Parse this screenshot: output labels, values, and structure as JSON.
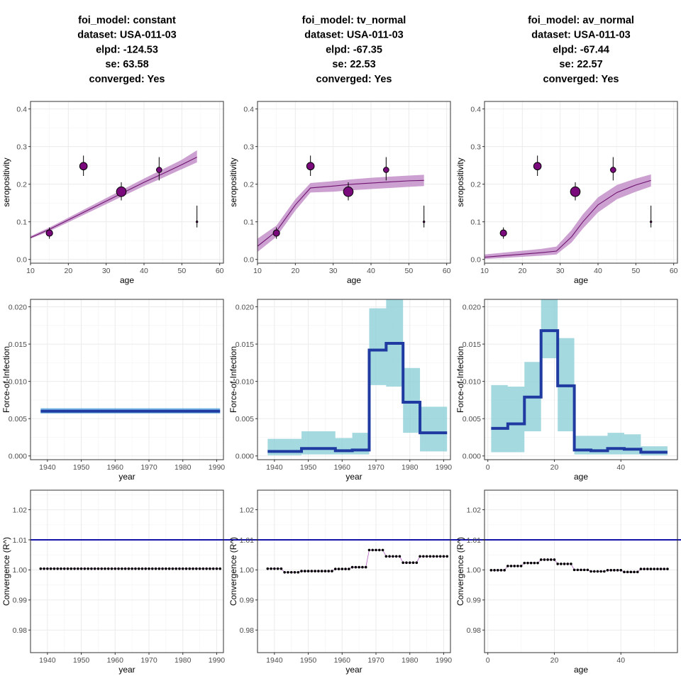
{
  "chart_data": [
    {
      "type": "scatter",
      "panel": "seroprevalence",
      "title_lines": [
        "foi_model: constant",
        "dataset: USA-011-03",
        "elpd: -124.53",
        "se: 63.58",
        "converged: Yes"
      ],
      "xlabel": "age",
      "ylabel": "seropositivity",
      "xlim": [
        10,
        61
      ],
      "ylim": [
        -0.01,
        0.42
      ],
      "xticks": [
        10,
        20,
        30,
        40,
        50,
        60
      ],
      "yticks": [
        0.0,
        0.1,
        0.2,
        0.3,
        0.4
      ],
      "fit_x": [
        10,
        15,
        20,
        25,
        30,
        35,
        40,
        45,
        50,
        54
      ],
      "fit_mid": [
        0.058,
        0.08,
        0.105,
        0.13,
        0.155,
        0.18,
        0.205,
        0.228,
        0.252,
        0.272
      ],
      "fit_lo": [
        0.055,
        0.075,
        0.099,
        0.123,
        0.147,
        0.171,
        0.195,
        0.217,
        0.24,
        0.258
      ],
      "fit_hi": [
        0.062,
        0.085,
        0.111,
        0.137,
        0.163,
        0.189,
        0.215,
        0.24,
        0.265,
        0.29
      ],
      "observed": [
        {
          "age": 15,
          "prev": 0.07,
          "lo": 0.055,
          "hi": 0.085,
          "size": 0.45
        },
        {
          "age": 24,
          "prev": 0.248,
          "lo": 0.222,
          "hi": 0.276,
          "size": 0.55
        },
        {
          "age": 34,
          "prev": 0.18,
          "lo": 0.157,
          "hi": 0.205,
          "size": 0.75
        },
        {
          "age": 44,
          "prev": 0.238,
          "lo": 0.21,
          "hi": 0.272,
          "size": 0.35
        },
        {
          "age": 54,
          "prev": 0.1,
          "lo": 0.085,
          "hi": 0.143,
          "size": 0.0
        }
      ]
    },
    {
      "type": "scatter",
      "panel": "seroprevalence",
      "title_lines": [
        "foi_model: tv_normal",
        "dataset: USA-011-03",
        "elpd: -67.35",
        "se: 22.53",
        "converged: Yes"
      ],
      "xlabel": "age",
      "ylabel": "seropositivity",
      "xlim": [
        10,
        61
      ],
      "ylim": [
        -0.01,
        0.42
      ],
      "xticks": [
        10,
        20,
        30,
        40,
        50,
        60
      ],
      "yticks": [
        0.0,
        0.1,
        0.2,
        0.3,
        0.4
      ],
      "fit_x": [
        10,
        15,
        20,
        24,
        30,
        35,
        40,
        45,
        50,
        54
      ],
      "fit_mid": [
        0.035,
        0.075,
        0.145,
        0.19,
        0.195,
        0.2,
        0.203,
        0.206,
        0.209,
        0.21
      ],
      "fit_lo": [
        0.02,
        0.06,
        0.13,
        0.178,
        0.18,
        0.184,
        0.187,
        0.19,
        0.193,
        0.195
      ],
      "fit_hi": [
        0.055,
        0.09,
        0.16,
        0.203,
        0.208,
        0.213,
        0.217,
        0.22,
        0.223,
        0.225
      ],
      "observed": [
        {
          "age": 15,
          "prev": 0.07,
          "lo": 0.055,
          "hi": 0.085,
          "size": 0.45
        },
        {
          "age": 24,
          "prev": 0.248,
          "lo": 0.222,
          "hi": 0.276,
          "size": 0.55
        },
        {
          "age": 34,
          "prev": 0.18,
          "lo": 0.157,
          "hi": 0.205,
          "size": 0.75
        },
        {
          "age": 44,
          "prev": 0.238,
          "lo": 0.21,
          "hi": 0.272,
          "size": 0.35
        },
        {
          "age": 54,
          "prev": 0.1,
          "lo": 0.085,
          "hi": 0.143,
          "size": 0.0
        }
      ]
    },
    {
      "type": "scatter",
      "panel": "seroprevalence",
      "title_lines": [
        "foi_model: av_normal",
        "dataset: USA-011-03",
        "elpd: -67.44",
        "se: 22.57",
        "converged: Yes"
      ],
      "xlabel": "age",
      "ylabel": "seropositivity",
      "xlim": [
        10,
        61
      ],
      "ylim": [
        -0.01,
        0.42
      ],
      "xticks": [
        10,
        20,
        30,
        40,
        50,
        60
      ],
      "yticks": [
        0.0,
        0.1,
        0.2,
        0.3,
        0.4
      ],
      "fit_x": [
        10,
        15,
        20,
        25,
        29,
        33,
        36,
        40,
        45,
        50,
        54
      ],
      "fit_mid": [
        0.006,
        0.01,
        0.014,
        0.018,
        0.022,
        0.06,
        0.1,
        0.145,
        0.178,
        0.198,
        0.21
      ],
      "fit_lo": [
        0.001,
        0.004,
        0.007,
        0.01,
        0.013,
        0.045,
        0.082,
        0.125,
        0.16,
        0.18,
        0.194
      ],
      "fit_hi": [
        0.013,
        0.018,
        0.023,
        0.028,
        0.034,
        0.078,
        0.12,
        0.165,
        0.198,
        0.215,
        0.226
      ],
      "observed": [
        {
          "age": 15,
          "prev": 0.07,
          "lo": 0.055,
          "hi": 0.085,
          "size": 0.45
        },
        {
          "age": 24,
          "prev": 0.248,
          "lo": 0.222,
          "hi": 0.276,
          "size": 0.55
        },
        {
          "age": 34,
          "prev": 0.18,
          "lo": 0.157,
          "hi": 0.205,
          "size": 0.75
        },
        {
          "age": 44,
          "prev": 0.238,
          "lo": 0.21,
          "hi": 0.272,
          "size": 0.35
        },
        {
          "age": 54,
          "prev": 0.1,
          "lo": 0.085,
          "hi": 0.143,
          "size": 0.0
        }
      ]
    },
    {
      "type": "line",
      "panel": "foi",
      "xlabel": "year",
      "ylabel": "Force-of-Infection",
      "xlim": [
        1935,
        1992
      ],
      "ylim": [
        -0.0005,
        0.021
      ],
      "xticks": [
        1940,
        1950,
        1960,
        1970,
        1980,
        1990
      ],
      "yticks": [
        0.0,
        0.005,
        0.01,
        0.015,
        0.02
      ],
      "ytick_labels": [
        "0.000",
        "0.005",
        "0.010",
        "0.015",
        "0.020"
      ],
      "x": [
        1938,
        1991
      ],
      "mid": [
        0.006,
        0.006
      ],
      "lo": [
        0.0057,
        0.0057
      ],
      "hi": [
        0.0064,
        0.0064
      ]
    },
    {
      "type": "line",
      "panel": "foi",
      "xlabel": "year",
      "ylabel": "Force-of-Infection",
      "xlim": [
        1935,
        1992
      ],
      "ylim": [
        -0.0005,
        0.021
      ],
      "xticks": [
        1940,
        1950,
        1960,
        1970,
        1980,
        1990
      ],
      "yticks": [
        0.0,
        0.005,
        0.01,
        0.015,
        0.02
      ],
      "ytick_labels": [
        "0.000",
        "0.005",
        "0.010",
        "0.015",
        "0.020"
      ],
      "x": [
        1938,
        1943,
        1948,
        1953,
        1958,
        1963,
        1968,
        1973,
        1978,
        1983,
        1988,
        1991
      ],
      "mid": [
        0.0006,
        0.0006,
        0.001,
        0.001,
        0.0007,
        0.0008,
        0.0142,
        0.0151,
        0.0072,
        0.0031,
        0.0031,
        0.0031
      ],
      "lo": [
        0.0001,
        0.0001,
        0.0002,
        0.0002,
        0.0002,
        0.0002,
        0.0095,
        0.0093,
        0.0031,
        0.0006,
        0.0006,
        0.0006
      ],
      "hi": [
        0.0023,
        0.0023,
        0.0033,
        0.0033,
        0.0024,
        0.0031,
        0.0198,
        0.0225,
        0.0118,
        0.0066,
        0.0066,
        0.0066
      ]
    },
    {
      "type": "line",
      "panel": "foi",
      "xlabel": "age",
      "ylabel": "Force-of-Infection",
      "xlim": [
        -1,
        57
      ],
      "ylim": [
        -0.0005,
        0.021
      ],
      "xticks": [
        0,
        20,
        40
      ],
      "yticks": [
        0.0,
        0.005,
        0.01,
        0.015,
        0.02
      ],
      "ytick_labels": [
        "0.000",
        "0.005",
        "0.010",
        "0.015",
        "0.020"
      ],
      "x": [
        1,
        6,
        11,
        16,
        21,
        26,
        31,
        36,
        41,
        46,
        51,
        54
      ],
      "mid": [
        0.0037,
        0.0043,
        0.0079,
        0.0168,
        0.0094,
        0.0008,
        0.0007,
        0.001,
        0.0009,
        0.0005,
        0.0005,
        0.0005
      ],
      "lo": [
        0.0005,
        0.0005,
        0.0033,
        0.0131,
        0.0033,
        0.0002,
        0.0002,
        0.0002,
        0.0002,
        0.0001,
        0.0001,
        0.0001
      ],
      "hi": [
        0.0095,
        0.0093,
        0.0126,
        0.0225,
        0.0158,
        0.0027,
        0.0027,
        0.0031,
        0.0029,
        0.0013,
        0.0013,
        0.0013
      ]
    },
    {
      "type": "scatter",
      "panel": "convergence",
      "xlabel": "year",
      "ylabel": "Convergence (R^)",
      "xlim": [
        1935,
        1992
      ],
      "ylim": [
        0.9725,
        1.0265
      ],
      "xticks": [
        1940,
        1950,
        1960,
        1970,
        1980,
        1990
      ],
      "yticks": [
        0.98,
        0.99,
        1.0,
        1.01,
        1.02
      ],
      "ytick_labels": [
        "0.98",
        "0.99",
        "1.00",
        "1.01",
        "1.02"
      ],
      "threshold": 1.01,
      "x_start": 1938,
      "x_end": 1991,
      "points": 54,
      "segments": [
        {
          "to": 1991,
          "value": 1.0004
        }
      ]
    },
    {
      "type": "scatter",
      "panel": "convergence",
      "xlabel": "year",
      "ylabel": "Convergence (R^)",
      "xlim": [
        1935,
        1992
      ],
      "ylim": [
        0.9725,
        1.0265
      ],
      "xticks": [
        1940,
        1950,
        1960,
        1970,
        1980,
        1990
      ],
      "yticks": [
        0.98,
        0.99,
        1.0,
        1.01,
        1.02
      ],
      "ytick_labels": [
        "0.98",
        "0.99",
        "1.00",
        "1.01",
        "1.02"
      ],
      "threshold": 1.01,
      "x_start": 1938,
      "x_end": 1991,
      "points": 54,
      "segments": [
        {
          "to": 1942,
          "value": 1.0004
        },
        {
          "to": 1947,
          "value": 0.9992
        },
        {
          "to": 1957,
          "value": 0.9996
        },
        {
          "to": 1962,
          "value": 1.0003
        },
        {
          "to": 1967,
          "value": 1.0009
        },
        {
          "to": 1972,
          "value": 1.0066
        },
        {
          "to": 1977,
          "value": 1.0045
        },
        {
          "to": 1982,
          "value": 1.0024
        },
        {
          "to": 1991,
          "value": 1.0045
        }
      ]
    },
    {
      "type": "scatter",
      "panel": "convergence",
      "xlabel": "age",
      "ylabel": "Convergence (R^)",
      "xlim": [
        -1,
        57
      ],
      "ylim": [
        0.9725,
        1.0265
      ],
      "xticks": [
        0,
        20,
        40
      ],
      "yticks": [
        0.98,
        0.99,
        1.0,
        1.01,
        1.02
      ],
      "ytick_labels": [
        "0.98",
        "0.99",
        "1.00",
        "1.01",
        "1.02"
      ],
      "threshold": 1.01,
      "x_start": 1,
      "x_end": 54,
      "points": 54,
      "segments": [
        {
          "to": 5,
          "value": 0.9999
        },
        {
          "to": 10,
          "value": 1.0013
        },
        {
          "to": 15,
          "value": 1.0023
        },
        {
          "to": 20,
          "value": 1.0034
        },
        {
          "to": 25,
          "value": 1.002
        },
        {
          "to": 30,
          "value": 1.0
        },
        {
          "to": 35,
          "value": 0.9995
        },
        {
          "to": 40,
          "value": 0.9999
        },
        {
          "to": 45,
          "value": 0.9993
        },
        {
          "to": 54,
          "value": 1.0003
        }
      ]
    }
  ],
  "colors": {
    "sero_band": "#c38fc8",
    "sero_line": "#6f1470",
    "point_fill": "#7a0a7c",
    "foi_band": "#8fd0d8",
    "foi_line": "#1f3aa0",
    "foi_band_first": "#5aa8e0",
    "rhat_line": "#1414a8",
    "rhat_points": "#000000",
    "rhat_connector": "#b060c0",
    "grid": "#ebebeb",
    "frame": "#333333"
  }
}
